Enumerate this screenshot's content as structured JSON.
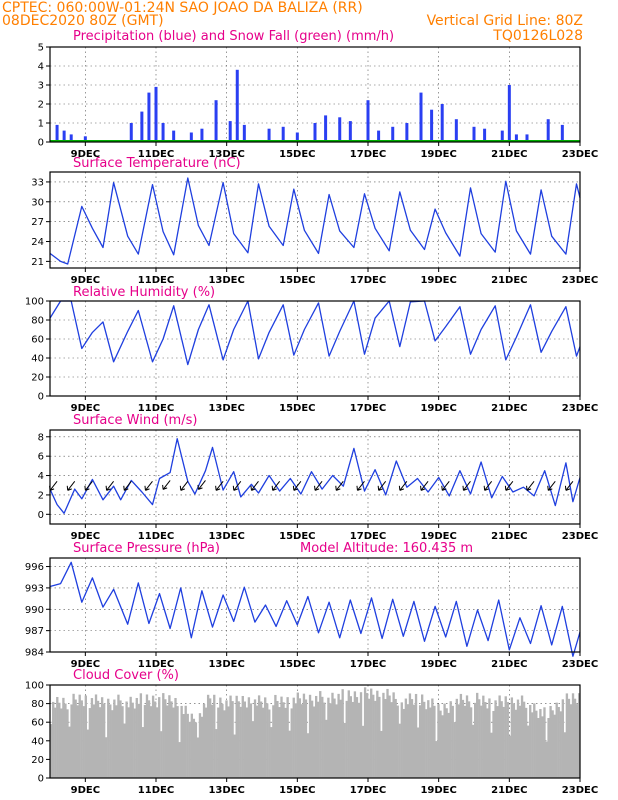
{
  "header": {
    "line1_left": "CPTEC:   060:00W-01:24N   SAO JOAO DA BALIZA (RR)",
    "line2_left": "08DEC2020 80Z (GMT)",
    "line2_right": "Vertical Grid Line: 80Z",
    "line3_right": "TQ0126L028"
  },
  "colors": {
    "series": "#1f3fdf",
    "bars": "#2a3ff2",
    "snow": "#00b000",
    "cloud": "#b4b4b4",
    "title": "#e6008a",
    "header": "#ff7f00"
  },
  "x_axis": {
    "start_day": 8,
    "end_day": 23,
    "tick_labels": [
      "9DEC",
      "11DEC",
      "13DEC",
      "15DEC",
      "17DEC",
      "19DEC",
      "21DEC",
      "23DEC"
    ],
    "tick_days": [
      9,
      11,
      13,
      15,
      17,
      19,
      21,
      23
    ]
  },
  "chart_data": [
    {
      "type": "bar",
      "title": "Precipitation (blue) and Snow Fall (green) (mm/h)",
      "ylim": [
        0,
        5
      ],
      "yticks": [
        "0",
        "1",
        "2",
        "3",
        "4",
        "5"
      ],
      "series": [
        {
          "name": "Precipitation",
          "x": [
            8.2,
            8.4,
            8.6,
            9.0,
            10.3,
            10.6,
            10.8,
            11.0,
            11.2,
            11.5,
            12.0,
            12.3,
            12.7,
            13.1,
            13.3,
            13.5,
            14.2,
            14.6,
            15.0,
            15.5,
            15.8,
            16.2,
            16.5,
            17.0,
            17.3,
            17.7,
            18.1,
            18.5,
            18.8,
            19.1,
            19.5,
            20.0,
            20.3,
            20.8,
            21.0,
            21.2,
            21.5,
            22.1,
            22.5
          ],
          "values": [
            0.9,
            0.6,
            0.4,
            0.3,
            1.0,
            1.6,
            2.6,
            2.9,
            1.0,
            0.6,
            0.5,
            0.7,
            2.2,
            1.1,
            3.8,
            0.9,
            0.7,
            0.8,
            0.5,
            1.0,
            1.4,
            1.3,
            1.1,
            2.2,
            0.6,
            0.8,
            1.0,
            2.6,
            1.7,
            2.0,
            1.2,
            0.8,
            0.7,
            0.6,
            3.0,
            0.4,
            0.4,
            1.2,
            0.9
          ]
        },
        {
          "name": "Snow Fall",
          "values": [
            0
          ]
        }
      ]
    },
    {
      "type": "line",
      "title": "Surface Temperature (nC)",
      "ylim": [
        20,
        34.5
      ],
      "yticks": [
        "21",
        "24",
        "27",
        "30",
        "33"
      ],
      "x": [
        8.0,
        8.3,
        8.5,
        8.9,
        9.2,
        9.5,
        9.8,
        10.2,
        10.5,
        10.9,
        11.2,
        11.5,
        11.9,
        12.2,
        12.5,
        12.9,
        13.2,
        13.6,
        13.9,
        14.2,
        14.6,
        14.9,
        15.2,
        15.6,
        15.9,
        16.2,
        16.6,
        16.9,
        17.2,
        17.6,
        17.9,
        18.2,
        18.6,
        18.9,
        19.2,
        19.6,
        19.9,
        20.2,
        20.6,
        20.9,
        21.2,
        21.6,
        21.9,
        22.2,
        22.6,
        22.9,
        23.0
      ],
      "values": [
        22.2,
        21,
        20.6,
        29.3,
        26,
        23.1,
        32.9,
        24.8,
        22.1,
        32.6,
        25.5,
        22,
        33.6,
        26.4,
        23.4,
        32.9,
        25.2,
        22.3,
        32.7,
        26.3,
        23.4,
        31.9,
        25.7,
        22.2,
        31.1,
        25.6,
        23.1,
        31.2,
        26,
        22.6,
        31.5,
        25.7,
        22.8,
        28.9,
        25.3,
        21.8,
        32.1,
        25.2,
        22.4,
        33.1,
        25.6,
        22.1,
        31.8,
        24.8,
        22.1,
        32.7,
        30.6
      ]
    },
    {
      "type": "line",
      "title": "Relative Humidity (%)",
      "ylim": [
        0,
        100
      ],
      "yticks": [
        "0",
        "20",
        "40",
        "60",
        "80",
        "100"
      ],
      "x": [
        8.0,
        8.3,
        8.6,
        8.9,
        9.2,
        9.5,
        9.8,
        10.2,
        10.5,
        10.9,
        11.2,
        11.5,
        11.9,
        12.2,
        12.5,
        12.9,
        13.2,
        13.6,
        13.9,
        14.2,
        14.6,
        14.9,
        15.2,
        15.6,
        15.9,
        16.2,
        16.6,
        16.9,
        17.2,
        17.6,
        17.9,
        18.2,
        18.6,
        18.9,
        19.2,
        19.6,
        19.9,
        20.2,
        20.6,
        20.9,
        21.2,
        21.6,
        21.9,
        22.2,
        22.6,
        22.9,
        23.0
      ],
      "values": [
        82,
        100,
        100,
        50,
        67,
        78,
        36,
        68,
        90,
        36,
        60,
        95,
        33,
        70,
        96,
        38,
        70,
        100,
        39,
        67,
        96,
        43,
        70,
        98,
        42,
        68,
        100,
        44,
        82,
        100,
        52,
        99,
        100,
        58,
        73,
        94,
        44,
        70,
        95,
        38,
        62,
        96,
        46,
        68,
        94,
        42,
        52
      ]
    },
    {
      "type": "line",
      "title": "Surface Wind (m/s)",
      "ylim": [
        -1,
        8.7
      ],
      "yticks": [
        "0",
        "2",
        "4",
        "6",
        "8"
      ],
      "x": [
        8.0,
        8.2,
        8.4,
        8.7,
        8.9,
        9.2,
        9.5,
        9.8,
        10.0,
        10.3,
        10.6,
        10.9,
        11.1,
        11.4,
        11.6,
        11.9,
        12.1,
        12.4,
        12.6,
        12.9,
        13.2,
        13.4,
        13.7,
        13.9,
        14.2,
        14.5,
        14.8,
        15.1,
        15.4,
        15.7,
        16.0,
        16.3,
        16.6,
        16.9,
        17.2,
        17.5,
        17.8,
        18.1,
        18.4,
        18.7,
        19.0,
        19.3,
        19.6,
        19.9,
        20.2,
        20.5,
        20.8,
        21.1,
        21.4,
        21.7,
        22.0,
        22.3,
        22.6,
        22.8,
        23.0
      ],
      "values": [
        2.6,
        1.0,
        0.1,
        2.6,
        1.6,
        3.6,
        1.5,
        2.9,
        1.5,
        3.5,
        2.3,
        1.0,
        3.7,
        4.3,
        7.8,
        3.4,
        2.1,
        4.5,
        6.9,
        2.5,
        4.4,
        1.8,
        3.1,
        2.2,
        4.0,
        2.4,
        3.7,
        2.1,
        4.4,
        2.6,
        4.0,
        2.9,
        6.8,
        2.4,
        4.6,
        2.0,
        5.5,
        2.8,
        3.7,
        2.3,
        3.8,
        1.9,
        4.5,
        2.1,
        5.4,
        1.7,
        3.9,
        2.3,
        2.8,
        1.9,
        4.5,
        0.9,
        5.3,
        1.3,
        3.8
      ]
    },
    {
      "type": "line",
      "title": "Surface Pressure (hPa)",
      "annotation": "Model Altitude: 160.435 m",
      "ylim": [
        984,
        997.2
      ],
      "yticks": [
        "984",
        "987",
        "990",
        "993",
        "996"
      ],
      "x": [
        8.0,
        8.3,
        8.6,
        8.9,
        9.2,
        9.5,
        9.8,
        10.2,
        10.5,
        10.8,
        11.1,
        11.4,
        11.7,
        12.0,
        12.3,
        12.6,
        12.9,
        13.2,
        13.5,
        13.8,
        14.1,
        14.4,
        14.7,
        15.0,
        15.3,
        15.6,
        15.9,
        16.2,
        16.5,
        16.8,
        17.1,
        17.4,
        17.7,
        18.0,
        18.3,
        18.6,
        18.9,
        19.2,
        19.5,
        19.8,
        20.1,
        20.4,
        20.7,
        21.0,
        21.3,
        21.6,
        21.9,
        22.2,
        22.5,
        22.8,
        23.0
      ],
      "values": [
        993.2,
        993.6,
        996.6,
        991.0,
        994.4,
        990.3,
        992.8,
        987.9,
        993.7,
        988.0,
        992.2,
        987.3,
        993.0,
        986.0,
        992.6,
        987.5,
        992.0,
        988.3,
        993.1,
        988.2,
        990.6,
        987.6,
        991.2,
        987.8,
        991.8,
        986.7,
        991.0,
        986.0,
        991.3,
        986.6,
        991.6,
        985.9,
        991.4,
        986.2,
        991.1,
        985.5,
        990.4,
        986.1,
        991.1,
        984.8,
        989.9,
        985.6,
        991.3,
        984.3,
        988.8,
        985.2,
        990.5,
        985.0,
        990.4,
        983.4,
        986.8
      ]
    },
    {
      "type": "bar",
      "title": "Cloud Cover (%)",
      "ylim": [
        0,
        100
      ],
      "yticks": [
        "0",
        "20",
        "40",
        "60",
        "80",
        "100"
      ],
      "x": [
        8.0,
        8.5,
        9.0,
        9.5,
        10.0,
        10.5,
        11.0,
        11.5,
        12.0,
        12.5,
        13.0,
        13.5,
        14.0,
        14.5,
        15.0,
        15.5,
        16.0,
        16.5,
        17.0,
        17.5,
        18.0,
        18.5,
        19.0,
        19.5,
        20.0,
        20.5,
        21.0,
        21.5,
        22.0,
        22.5,
        23.0
      ],
      "values": [
        88,
        90,
        92,
        88,
        90,
        91,
        92,
        90,
        70,
        92,
        88,
        92,
        90,
        89,
        92,
        93,
        95,
        96,
        98,
        96,
        90,
        93,
        80,
        92,
        92,
        88,
        90,
        88,
        75,
        90,
        95
      ]
    }
  ]
}
